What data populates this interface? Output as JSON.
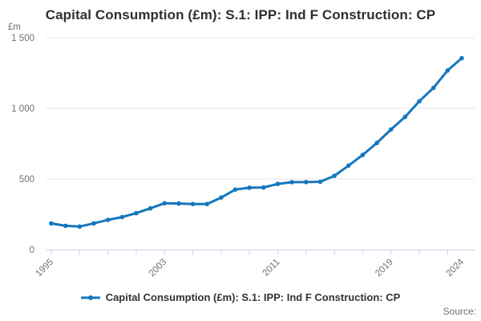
{
  "title": "Capital Consumption (£m): S.1: IPP: Ind F Construction: CP",
  "y_axis_unit": "£m",
  "source_label": "Source:",
  "legend": {
    "label": "Capital Consumption (£m): S.1: IPP: Ind F Construction: CP"
  },
  "colors": {
    "line": "#1577bd",
    "marker": "#1577bd",
    "grid": "#e6e6e6",
    "axis": "#ccd6eb",
    "tick_text": "#707070",
    "title_text": "#2f2f2f"
  },
  "chart_data": {
    "type": "line",
    "title": "Capital Consumption (£m): S.1: IPP: Ind F Construction: CP",
    "xlabel": "",
    "ylabel": "£m",
    "ylim": [
      0,
      1500
    ],
    "yticks": [
      0,
      500,
      1000,
      1500
    ],
    "ytick_labels": [
      "0",
      "500",
      "1 000",
      "1 500"
    ],
    "x": [
      1995,
      1996,
      1997,
      1998,
      1999,
      2000,
      2001,
      2002,
      2003,
      2004,
      2005,
      2006,
      2007,
      2008,
      2009,
      2010,
      2011,
      2012,
      2013,
      2014,
      2015,
      2016,
      2017,
      2018,
      2019,
      2020,
      2021,
      2022,
      2023,
      2024
    ],
    "series": [
      {
        "name": "Capital Consumption (£m): S.1: IPP: Ind F Construction: CP",
        "values": [
          185,
          168,
          163,
          186,
          210,
          230,
          258,
          292,
          328,
          326,
          322,
          322,
          368,
          425,
          438,
          440,
          465,
          477,
          478,
          480,
          522,
          595,
          670,
          755,
          850,
          940,
          1050,
          1145,
          1268,
          1355
        ]
      }
    ],
    "xtick_minor_years": [
      1995,
      1997,
      1999,
      2001,
      2003,
      2005,
      2007,
      2009,
      2011,
      2013,
      2015,
      2017,
      2019,
      2021,
      2023
    ],
    "xtick_labeled_years": [
      1995,
      2003,
      2011,
      2019,
      2024
    ],
    "grid": "horizontal-only",
    "legend_position": "bottom-center",
    "marker": "circle"
  }
}
